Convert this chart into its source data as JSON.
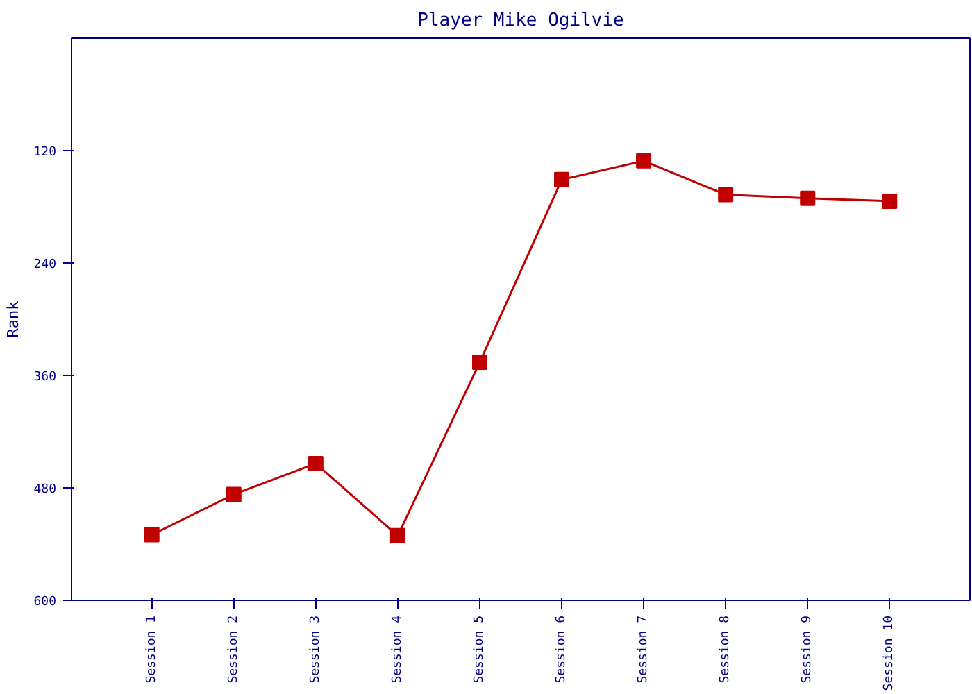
{
  "chart_data": {
    "type": "line",
    "title": "Player Mike Ogilvie",
    "ylabel": "Rank",
    "categories": [
      "Session 1",
      "Session 2",
      "Session 3",
      "Session 4",
      "Session 5",
      "Session 6",
      "Session 7",
      "Session 8",
      "Session 9",
      "Session 10"
    ],
    "series": [
      {
        "color": "#c00000",
        "values": [
          530,
          487,
          454,
          531,
          346,
          151,
          131,
          167,
          171,
          174
        ]
      }
    ],
    "ylim": [
      600,
      0
    ],
    "yticks": [
      120,
      240,
      360,
      480,
      600
    ],
    "grid": false,
    "marker": "square",
    "line_style": "solid"
  }
}
